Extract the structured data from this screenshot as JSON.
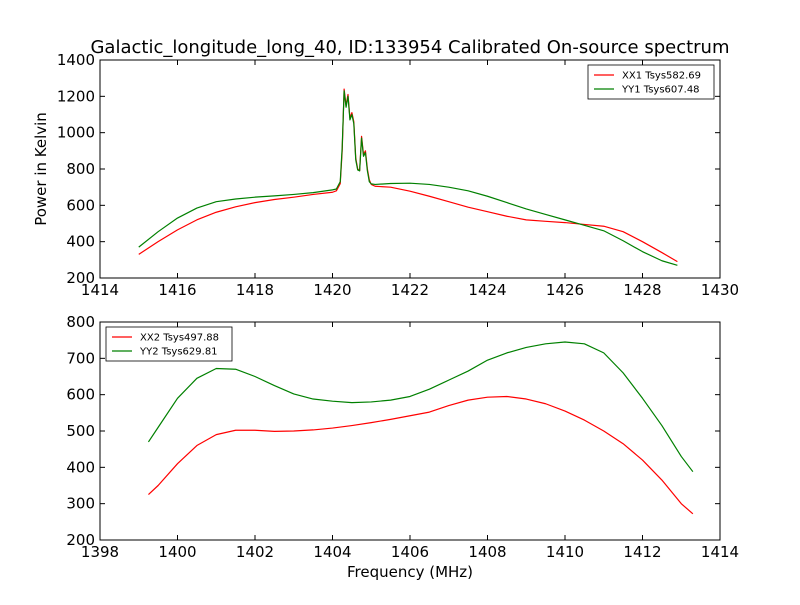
{
  "chart_data": [
    {
      "type": "line",
      "title": "Galactic_longitude_long_40, ID:133954 Calibrated On-source spectrum",
      "xlabel": "",
      "ylabel": "Power in Kelvin",
      "xlim": [
        1414,
        1430
      ],
      "ylim": [
        200,
        1400
      ],
      "xticks": [
        "1414",
        "1416",
        "1418",
        "1420",
        "1422",
        "1424",
        "1426",
        "1428",
        "1430"
      ],
      "yticks": [
        "200",
        "400",
        "600",
        "800",
        "1000",
        "1200",
        "1400"
      ],
      "grid": false,
      "legend_position": "top-right",
      "series": [
        {
          "name": "XX1 Tsys582.69",
          "color": "#ff0000",
          "x": [
            1415.0,
            1415.5,
            1416.0,
            1416.5,
            1417.0,
            1417.5,
            1418.0,
            1418.5,
            1419.0,
            1419.5,
            1420.0,
            1420.1,
            1420.2,
            1420.25,
            1420.3,
            1420.35,
            1420.4,
            1420.45,
            1420.5,
            1420.55,
            1420.6,
            1420.65,
            1420.7,
            1420.75,
            1420.8,
            1420.85,
            1420.9,
            1420.95,
            1421.0,
            1421.1,
            1421.5,
            1422.0,
            1422.5,
            1423.0,
            1423.5,
            1424.0,
            1424.5,
            1425.0,
            1425.5,
            1426.0,
            1426.5,
            1427.0,
            1427.5,
            1428.0,
            1428.5,
            1428.9
          ],
          "y": [
            330,
            400,
            465,
            520,
            562,
            592,
            615,
            632,
            645,
            660,
            672,
            680,
            720,
            900,
            1240,
            1150,
            1210,
            1080,
            1110,
            1060,
            860,
            800,
            790,
            980,
            880,
            900,
            800,
            740,
            715,
            705,
            700,
            678,
            650,
            620,
            590,
            565,
            540,
            520,
            512,
            505,
            495,
            485,
            455,
            400,
            340,
            290
          ]
        },
        {
          "name": "YY1 Tsys607.48",
          "color": "#008000",
          "x": [
            1415.0,
            1415.5,
            1416.0,
            1416.5,
            1417.0,
            1417.5,
            1418.0,
            1418.5,
            1419.0,
            1419.5,
            1420.0,
            1420.1,
            1420.2,
            1420.25,
            1420.3,
            1420.35,
            1420.4,
            1420.45,
            1420.5,
            1420.55,
            1420.6,
            1420.65,
            1420.7,
            1420.75,
            1420.8,
            1420.85,
            1420.9,
            1420.95,
            1421.0,
            1421.1,
            1421.5,
            1422.0,
            1422.5,
            1423.0,
            1423.5,
            1424.0,
            1424.5,
            1425.0,
            1425.5,
            1426.0,
            1426.5,
            1427.0,
            1427.5,
            1428.0,
            1428.5,
            1428.9
          ],
          "y": [
            370,
            455,
            530,
            585,
            620,
            635,
            645,
            652,
            660,
            670,
            685,
            690,
            730,
            920,
            1230,
            1140,
            1200,
            1070,
            1100,
            1050,
            850,
            795,
            790,
            970,
            870,
            890,
            790,
            730,
            718,
            715,
            720,
            722,
            715,
            700,
            680,
            650,
            615,
            580,
            550,
            520,
            490,
            460,
            405,
            345,
            295,
            270
          ]
        }
      ]
    },
    {
      "type": "line",
      "title": "",
      "xlabel": "Frequency (MHz)",
      "ylabel": "",
      "xlim": [
        1398,
        1414
      ],
      "ylim": [
        200,
        800
      ],
      "xticks": [
        "1398",
        "1400",
        "1402",
        "1404",
        "1406",
        "1408",
        "1410",
        "1412",
        "1414"
      ],
      "yticks": [
        "200",
        "300",
        "400",
        "500",
        "600",
        "700",
        "800"
      ],
      "grid": false,
      "legend_position": "top-left",
      "series": [
        {
          "name": "XX2 Tsys497.88",
          "color": "#ff0000",
          "x": [
            1399.25,
            1399.5,
            1400.0,
            1400.5,
            1401.0,
            1401.5,
            1402.0,
            1402.5,
            1403.0,
            1403.5,
            1404.0,
            1404.5,
            1405.0,
            1405.5,
            1406.0,
            1406.5,
            1407.0,
            1407.5,
            1408.0,
            1408.5,
            1409.0,
            1409.5,
            1410.0,
            1410.5,
            1411.0,
            1411.5,
            1412.0,
            1412.5,
            1413.0,
            1413.3
          ],
          "y": [
            325,
            350,
            410,
            460,
            490,
            502,
            502,
            499,
            500,
            503,
            508,
            515,
            523,
            532,
            542,
            552,
            570,
            585,
            593,
            595,
            588,
            575,
            555,
            530,
            500,
            465,
            420,
            365,
            300,
            272
          ]
        },
        {
          "name": "YY2 Tsys629.81",
          "color": "#008000",
          "x": [
            1399.25,
            1399.5,
            1400.0,
            1400.5,
            1401.0,
            1401.5,
            1402.0,
            1402.5,
            1403.0,
            1403.5,
            1404.0,
            1404.5,
            1405.0,
            1405.5,
            1406.0,
            1406.5,
            1407.0,
            1407.5,
            1408.0,
            1408.5,
            1409.0,
            1409.5,
            1410.0,
            1410.5,
            1411.0,
            1411.5,
            1412.0,
            1412.5,
            1413.0,
            1413.3
          ],
          "y": [
            470,
            510,
            590,
            645,
            672,
            670,
            650,
            625,
            602,
            588,
            582,
            578,
            580,
            585,
            595,
            615,
            640,
            665,
            695,
            715,
            730,
            740,
            745,
            740,
            715,
            660,
            590,
            515,
            430,
            388
          ]
        }
      ]
    }
  ]
}
